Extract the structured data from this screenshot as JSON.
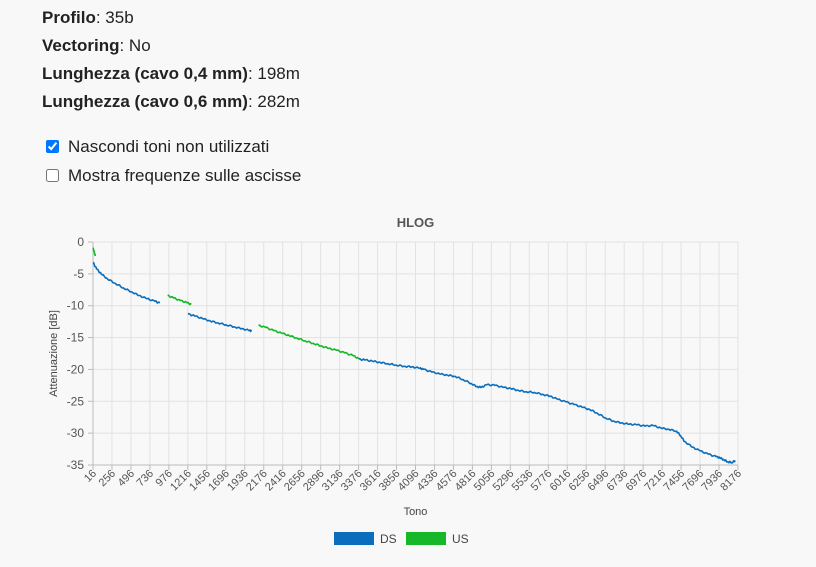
{
  "info": {
    "profile_label": "Profilo",
    "profile_value": "35b",
    "vectoring_label": "Vectoring",
    "vectoring_value": "No",
    "len04_label": "Lunghezza (cavo 0,4 mm)",
    "len04_value": "198m",
    "len06_label": "Lunghezza (cavo 0,6 mm)",
    "len06_value": "282m"
  },
  "options": {
    "hide_unused": {
      "label": "Nascondi toni non utilizzati",
      "checked": true
    },
    "show_freq": {
      "label": "Mostra frequenze sulle ascisse",
      "checked": false
    }
  },
  "chart_data": {
    "type": "line",
    "title": "HLOG",
    "xlabel": "Tono",
    "ylabel": "Attenuazione [dB]",
    "xlim": [
      16,
      8176
    ],
    "ylim": [
      -35,
      0
    ],
    "grid": true,
    "legend": "bottom",
    "x_ticks": [
      16,
      256,
      496,
      736,
      976,
      1216,
      1456,
      1696,
      1936,
      2176,
      2416,
      2656,
      2896,
      3136,
      3376,
      3616,
      3856,
      4096,
      4336,
      4576,
      4816,
      5056,
      5296,
      5536,
      5776,
      6016,
      6256,
      6496,
      6736,
      6976,
      7216,
      7456,
      7696,
      7936,
      8176
    ],
    "y_ticks": [
      0,
      -5,
      -10,
      -15,
      -20,
      -25,
      -30,
      -35
    ],
    "series": [
      {
        "name": "DS",
        "color": "#0a6ebd",
        "segments": [
          [
            [
              16,
              -3.2
            ],
            [
              60,
              -4.2
            ],
            [
              120,
              -5.0
            ],
            [
              200,
              -5.8
            ],
            [
              300,
              -6.5
            ],
            [
              400,
              -7.2
            ],
            [
              500,
              -7.8
            ],
            [
              600,
              -8.4
            ],
            [
              700,
              -8.9
            ],
            [
              800,
              -9.3
            ],
            [
              860,
              -9.6
            ]
          ],
          [
            [
              1216,
              -11.3
            ],
            [
              1300,
              -11.6
            ],
            [
              1400,
              -12.0
            ],
            [
              1500,
              -12.4
            ],
            [
              1600,
              -12.7
            ],
            [
              1700,
              -13.0
            ],
            [
              1800,
              -13.3
            ],
            [
              1900,
              -13.6
            ],
            [
              2000,
              -13.9
            ],
            [
              2020,
              -14.0
            ]
          ],
          [
            [
              3376,
              -18.4
            ],
            [
              3450,
              -18.5
            ],
            [
              3550,
              -18.7
            ],
            [
              3650,
              -18.9
            ],
            [
              3750,
              -19.1
            ],
            [
              3850,
              -19.3
            ],
            [
              3950,
              -19.5
            ],
            [
              4050,
              -19.6
            ],
            [
              4150,
              -19.8
            ],
            [
              4200,
              -20.0
            ],
            [
              4300,
              -20.4
            ],
            [
              4400,
              -20.7
            ],
            [
              4500,
              -20.9
            ],
            [
              4600,
              -21.1
            ],
            [
              4700,
              -21.6
            ],
            [
              4800,
              -22.2
            ],
            [
              4870,
              -22.7
            ],
            [
              4930,
              -22.8
            ],
            [
              5000,
              -22.4
            ],
            [
              5100,
              -22.5
            ],
            [
              5200,
              -22.8
            ],
            [
              5300,
              -23.0
            ],
            [
              5400,
              -23.3
            ],
            [
              5500,
              -23.5
            ],
            [
              5600,
              -23.6
            ],
            [
              5700,
              -23.9
            ],
            [
              5800,
              -24.2
            ],
            [
              5900,
              -24.7
            ],
            [
              6000,
              -25.1
            ],
            [
              6100,
              -25.5
            ],
            [
              6200,
              -25.9
            ],
            [
              6300,
              -26.3
            ],
            [
              6400,
              -26.9
            ],
            [
              6500,
              -27.6
            ],
            [
              6600,
              -28.1
            ],
            [
              6700,
              -28.4
            ],
            [
              6800,
              -28.6
            ],
            [
              6900,
              -28.7
            ],
            [
              7000,
              -28.9
            ],
            [
              7100,
              -28.8
            ],
            [
              7200,
              -29.2
            ],
            [
              7300,
              -29.4
            ],
            [
              7400,
              -29.7
            ],
            [
              7450,
              -30.4
            ],
            [
              7500,
              -31.3
            ],
            [
              7600,
              -32.2
            ],
            [
              7700,
              -32.8
            ],
            [
              7800,
              -33.3
            ],
            [
              7900,
              -33.7
            ],
            [
              7950,
              -33.9
            ],
            [
              8000,
              -34.2
            ],
            [
              8050,
              -34.5
            ],
            [
              8100,
              -34.6
            ],
            [
              8140,
              -34.3
            ]
          ]
        ]
      },
      {
        "name": "US",
        "color": "#16b82a",
        "segments": [
          [
            [
              16,
              -1.0
            ],
            [
              30,
              -1.5
            ],
            [
              45,
              -2.2
            ]
          ],
          [
            [
              960,
              -8.4
            ],
            [
              1040,
              -8.8
            ],
            [
              1120,
              -9.2
            ],
            [
              1200,
              -9.5
            ],
            [
              1260,
              -9.8
            ]
          ],
          [
            [
              2110,
              -13.1
            ],
            [
              2200,
              -13.4
            ],
            [
              2300,
              -13.9
            ],
            [
              2400,
              -14.3
            ],
            [
              2500,
              -14.7
            ],
            [
              2600,
              -15.1
            ],
            [
              2700,
              -15.5
            ],
            [
              2800,
              -15.9
            ],
            [
              2900,
              -16.3
            ],
            [
              3000,
              -16.7
            ],
            [
              3100,
              -17.0
            ],
            [
              3200,
              -17.4
            ],
            [
              3300,
              -17.8
            ],
            [
              3376,
              -18.3
            ]
          ]
        ]
      }
    ]
  }
}
